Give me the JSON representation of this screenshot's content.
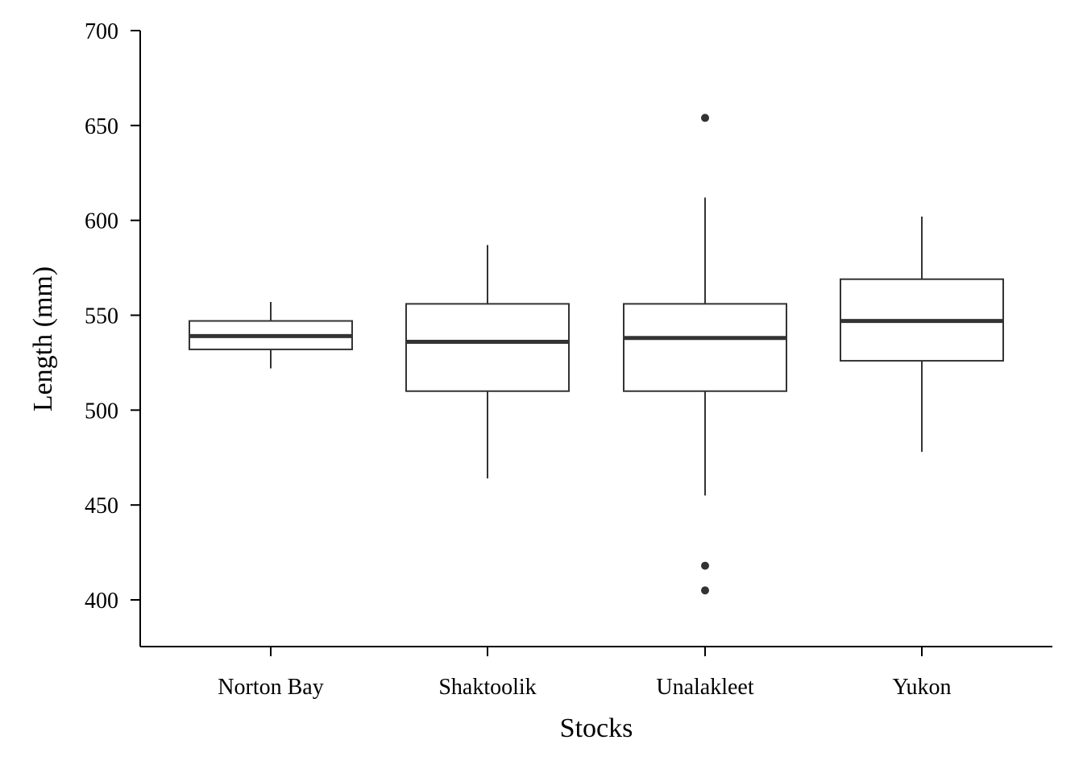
{
  "chart_data": {
    "type": "boxplot",
    "xlabel": "Stocks",
    "ylabel": "Length (mm)",
    "ylim": [
      375,
      700
    ],
    "yticks": [
      400,
      450,
      500,
      550,
      600,
      650,
      700
    ],
    "categories": [
      "Norton Bay",
      "Shaktoolik",
      "Unalakleet",
      "Yukon"
    ],
    "boxes": [
      {
        "category": "Norton Bay",
        "whisker_low": 522,
        "q1": 532,
        "median": 539,
        "q3": 547,
        "whisker_high": 557,
        "outliers": []
      },
      {
        "category": "Shaktoolik",
        "whisker_low": 464,
        "q1": 510,
        "median": 536,
        "q3": 556,
        "whisker_high": 587,
        "outliers": []
      },
      {
        "category": "Unalakleet",
        "whisker_low": 455,
        "q1": 510,
        "median": 538,
        "q3": 556,
        "whisker_high": 612,
        "outliers": [
          654,
          418,
          405
        ]
      },
      {
        "category": "Yukon",
        "whisker_low": 478,
        "q1": 526,
        "median": 547,
        "q3": 569,
        "whisker_high": 602,
        "outliers": []
      }
    ],
    "grid": false,
    "legend": "none",
    "colors": {
      "box_fill": "#ffffff",
      "box_stroke": "#333333",
      "median": "#333333",
      "outlier": "#333333",
      "axis": "#000000"
    }
  }
}
